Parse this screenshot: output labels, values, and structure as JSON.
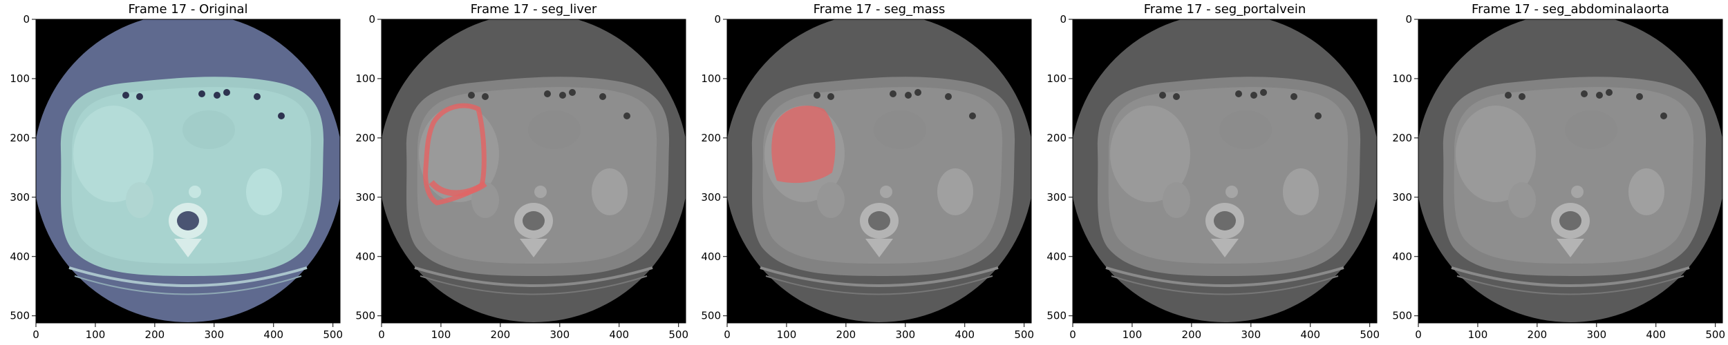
{
  "panels": [
    {
      "title": "Frame 17 - Original",
      "view": "original",
      "overlay": null
    },
    {
      "title": "Frame 17 - seg_liver",
      "view": "grayscale",
      "overlay": "liver"
    },
    {
      "title": "Frame 17 - seg_mass",
      "view": "grayscale",
      "overlay": "mass"
    },
    {
      "title": "Frame 17 - seg_portalvein",
      "view": "grayscale",
      "overlay": null
    },
    {
      "title": "Frame 17 - seg_abdominalaorta",
      "view": "grayscale",
      "overlay": null
    }
  ],
  "axis": {
    "x_ticks": [
      0,
      100,
      200,
      300,
      400,
      500
    ],
    "y_ticks": [
      0,
      100,
      200,
      300,
      400,
      500
    ],
    "range": [
      0,
      512
    ]
  },
  "colors": {
    "background": "#000000",
    "original_body": "#9fc9c6",
    "original_disc": "#5f6a8f",
    "gray_disc": "#5a5a5a",
    "gray_body": "#828282",
    "gray_organ": "#8e8e8e",
    "overlay": "#e06565"
  }
}
